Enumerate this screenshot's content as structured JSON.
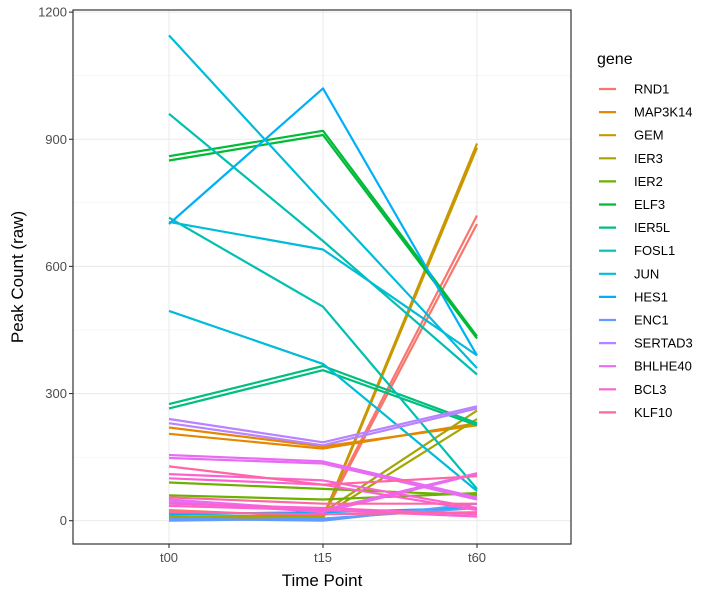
{
  "chart_data": {
    "type": "line",
    "xlabel": "Time Point",
    "ylabel": "Peak Count (raw)",
    "x": [
      "t00",
      "t15",
      "t60"
    ],
    "ylim": [
      -55,
      1205
    ],
    "yticks": [
      0,
      300,
      600,
      900,
      1200
    ],
    "grid": true,
    "legend": {
      "title": "gene",
      "placement": "right"
    },
    "series": [
      {
        "name": "RND1",
        "color": "#F8766D",
        "lines": [
          [
            20,
            15,
            720
          ],
          [
            25,
            10,
            700
          ]
        ]
      },
      {
        "name": "MAP3K14",
        "color": "#E58700",
        "lines": [
          [
            220,
            175,
            225
          ],
          [
            205,
            170,
            230
          ]
        ]
      },
      {
        "name": "GEM",
        "color": "#C99800",
        "lines": [
          [
            5,
            5,
            880
          ],
          [
            8,
            8,
            890
          ]
        ]
      },
      {
        "name": "IER3",
        "color": "#A3A500",
        "lines": [
          [
            15,
            20,
            260
          ],
          [
            10,
            12,
            240
          ]
        ]
      },
      {
        "name": "IER2",
        "color": "#6BB100",
        "lines": [
          [
            90,
            75,
            60
          ],
          [
            60,
            50,
            65
          ]
        ]
      },
      {
        "name": "ELF3",
        "color": "#00BA38",
        "lines": [
          [
            860,
            920,
            435
          ],
          [
            850,
            910,
            430
          ]
        ]
      },
      {
        "name": "IER5L",
        "color": "#00BF7D",
        "lines": [
          [
            275,
            365,
            230
          ],
          [
            265,
            355,
            225
          ]
        ]
      },
      {
        "name": "FOSL1",
        "color": "#00C0AF",
        "lines": [
          [
            960,
            660,
            345
          ],
          [
            715,
            505,
            75
          ]
        ]
      },
      {
        "name": "JUN",
        "color": "#00BCD8",
        "lines": [
          [
            1145,
            750,
            360
          ],
          [
            495,
            370,
            70
          ],
          [
            705,
            640,
            390
          ]
        ]
      },
      {
        "name": "HES1",
        "color": "#00B0F6",
        "lines": [
          [
            700,
            1020,
            390
          ],
          [
            15,
            20,
            30
          ]
        ]
      },
      {
        "name": "ENC1",
        "color": "#619CFF",
        "lines": [
          [
            5,
            0,
            40
          ],
          [
            0,
            5,
            30
          ]
        ]
      },
      {
        "name": "SERTAD3",
        "color": "#B983FF",
        "lines": [
          [
            240,
            185,
            270
          ],
          [
            230,
            178,
            265
          ]
        ]
      },
      {
        "name": "BHLHE40",
        "color": "#E76BF3",
        "lines": [
          [
            155,
            140,
            55
          ],
          [
            148,
            135,
            50
          ],
          [
            50,
            25,
            112
          ],
          [
            45,
            20,
            110
          ]
        ]
      },
      {
        "name": "BCL3",
        "color": "#FD61D1",
        "lines": [
          [
            110,
            95,
            30
          ],
          [
            100,
            85,
            25
          ],
          [
            40,
            30,
            15
          ],
          [
            35,
            25,
            10
          ]
        ]
      },
      {
        "name": "KLF10",
        "color": "#FF67A4",
        "lines": [
          [
            128,
            85,
            105
          ],
          [
            55,
            40,
            40
          ],
          [
            20,
            15,
            20
          ]
        ]
      }
    ]
  }
}
